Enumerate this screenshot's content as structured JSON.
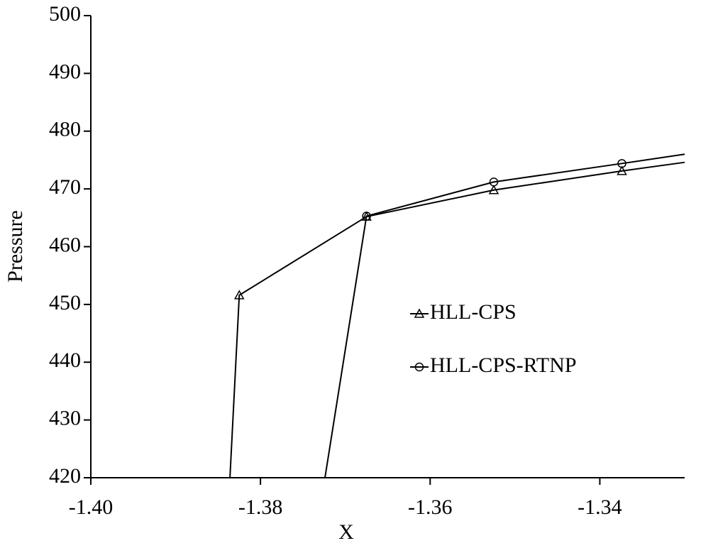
{
  "chart_data": {
    "type": "line",
    "x_label": "X",
    "y_label": "Pressure",
    "xlim": [
      -1.4,
      -1.33
    ],
    "ylim": [
      420,
      500
    ],
    "xticks": [
      {
        "value": -1.4,
        "label": "-1.40"
      },
      -1.38,
      -1.36,
      -1.34
    ],
    "yticks": [
      420,
      430,
      440,
      450,
      460,
      470,
      480,
      490,
      500
    ],
    "grid": false,
    "series": [
      {
        "name": "HLL-CPS",
        "color": "#000000",
        "marker": "triangle",
        "x": [
          -1.3836,
          -1.3825,
          -1.3675,
          -1.3525,
          -1.3374,
          -1.33
        ],
        "values": [
          420,
          451.6,
          465.2,
          469.8,
          473.1,
          474.6
        ]
      },
      {
        "name": "HLL-CPS-RTNP",
        "color": "#000000",
        "marker": "circle",
        "x": [
          -1.3724,
          -1.3675,
          -1.3525,
          -1.3374,
          -1.33
        ],
        "values": [
          420,
          465.3,
          471.2,
          474.4,
          476.0
        ]
      }
    ]
  }
}
